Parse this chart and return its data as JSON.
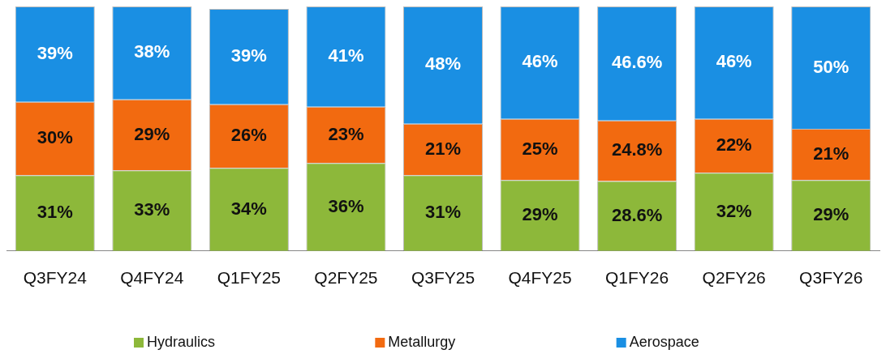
{
  "chart_data": {
    "type": "bar",
    "stacked": true,
    "legend": "bottom",
    "grid": false,
    "categories": [
      "Q3FY24",
      "Q4FY24",
      "Q1FY25",
      "Q2FY25",
      "Q3FY25",
      "Q4FY25",
      "Q1FY26",
      "Q2FY26",
      "Q3FY26"
    ],
    "series": [
      {
        "name": "Hydraulics",
        "color": "#8db83a",
        "values": [
          31,
          33,
          34,
          36,
          31,
          29,
          28.6,
          32,
          29
        ],
        "value_labels": [
          "31%",
          "33%",
          "34%",
          "36%",
          "31%",
          "29%",
          "28.6%",
          "32%",
          "29%"
        ]
      },
      {
        "name": "Metallurgy",
        "color": "#f26a10",
        "values": [
          30,
          29,
          26,
          23,
          21,
          25,
          24.8,
          22,
          21
        ],
        "value_labels": [
          "30%",
          "29%",
          "26%",
          "23%",
          "21%",
          "25%",
          "24.8%",
          "22%",
          "21%"
        ]
      },
      {
        "name": "Aerospace",
        "color": "#1a8fe3",
        "values": [
          39,
          38,
          39,
          41,
          48,
          46,
          46.6,
          46,
          50
        ],
        "value_labels": [
          "39%",
          "38%",
          "39%",
          "41%",
          "48%",
          "46%",
          "46.6%",
          "46%",
          "50%"
        ]
      }
    ]
  }
}
